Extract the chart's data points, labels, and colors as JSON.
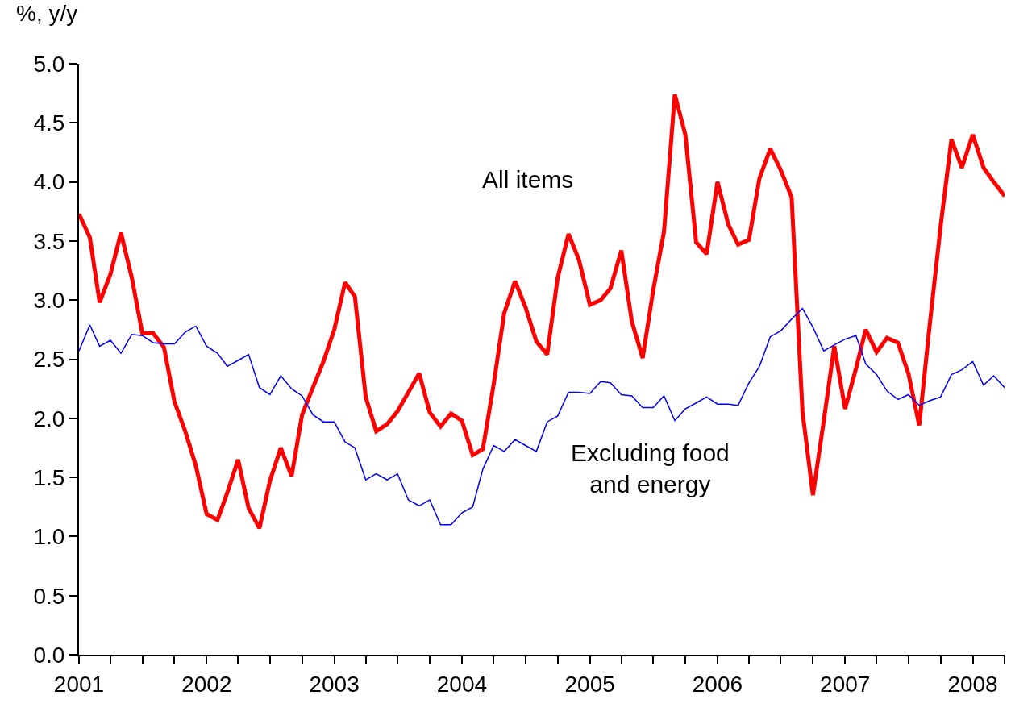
{
  "chart_data": {
    "type": "line",
    "ylabel": "%, y/y",
    "x": [
      "2001-01",
      "2001-02",
      "2001-03",
      "2001-04",
      "2001-05",
      "2001-06",
      "2001-07",
      "2001-08",
      "2001-09",
      "2001-10",
      "2001-11",
      "2001-12",
      "2002-01",
      "2002-02",
      "2002-03",
      "2002-04",
      "2002-05",
      "2002-06",
      "2002-07",
      "2002-08",
      "2002-09",
      "2002-10",
      "2002-11",
      "2002-12",
      "2003-01",
      "2003-02",
      "2003-03",
      "2003-04",
      "2003-05",
      "2003-06",
      "2003-07",
      "2003-08",
      "2003-09",
      "2003-10",
      "2003-11",
      "2003-12",
      "2004-01",
      "2004-02",
      "2004-03",
      "2004-04",
      "2004-05",
      "2004-06",
      "2004-07",
      "2004-08",
      "2004-09",
      "2004-10",
      "2004-11",
      "2004-12",
      "2005-01",
      "2005-02",
      "2005-03",
      "2005-04",
      "2005-05",
      "2005-06",
      "2005-07",
      "2005-08",
      "2005-09",
      "2005-10",
      "2005-11",
      "2005-12",
      "2006-01",
      "2006-02",
      "2006-03",
      "2006-04",
      "2006-05",
      "2006-06",
      "2006-07",
      "2006-08",
      "2006-09",
      "2006-10",
      "2006-11",
      "2006-12",
      "2007-01",
      "2007-02",
      "2007-03",
      "2007-04",
      "2007-05",
      "2007-06",
      "2007-07",
      "2007-08",
      "2007-09",
      "2007-10",
      "2007-11",
      "2007-12",
      "2008-01",
      "2008-02",
      "2008-03",
      "2008-04"
    ],
    "series": [
      {
        "name": "All items",
        "color": "#ff0000",
        "values": [
          3.73,
          3.53,
          2.98,
          3.22,
          3.57,
          3.19,
          2.72,
          2.72,
          2.6,
          2.14,
          1.89,
          1.6,
          1.19,
          1.14,
          1.37,
          1.65,
          1.24,
          1.07,
          1.47,
          1.75,
          1.51,
          2.03,
          2.26,
          2.48,
          2.75,
          3.15,
          3.03,
          2.18,
          1.89,
          1.95,
          2.06,
          2.22,
          2.38,
          2.05,
          1.93,
          2.04,
          1.98,
          1.69,
          1.74,
          2.29,
          2.89,
          3.16,
          2.94,
          2.65,
          2.54,
          3.19,
          3.56,
          3.34,
          2.96,
          3.0,
          3.1,
          3.42,
          2.82,
          2.51,
          3.08,
          3.58,
          4.74,
          4.4,
          3.49,
          3.39,
          4.0,
          3.64,
          3.47,
          3.51,
          4.03,
          4.28,
          4.1,
          3.87,
          2.06,
          1.35,
          1.98,
          2.61,
          2.08,
          2.42,
          2.75,
          2.56,
          2.68,
          2.64,
          2.38,
          1.94,
          2.82,
          3.62,
          4.36,
          4.12,
          4.4,
          4.12,
          4.0,
          3.88
        ]
      },
      {
        "name": "Excluding food\nand energy",
        "color": "#0000ff",
        "values": [
          2.57,
          2.79,
          2.61,
          2.66,
          2.55,
          2.71,
          2.7,
          2.64,
          2.63,
          2.63,
          2.73,
          2.78,
          2.61,
          2.55,
          2.44,
          2.49,
          2.54,
          2.26,
          2.2,
          2.36,
          2.25,
          2.19,
          2.03,
          1.97,
          1.97,
          1.8,
          1.75,
          1.48,
          1.53,
          1.48,
          1.53,
          1.31,
          1.26,
          1.31,
          1.1,
          1.1,
          1.2,
          1.25,
          1.57,
          1.77,
          1.72,
          1.82,
          1.77,
          1.72,
          1.97,
          2.02,
          2.22,
          2.22,
          2.21,
          2.31,
          2.3,
          2.2,
          2.19,
          2.09,
          2.09,
          2.19,
          1.98,
          2.08,
          2.13,
          2.18,
          2.12,
          2.12,
          2.11,
          2.3,
          2.44,
          2.69,
          2.74,
          2.84,
          2.93,
          2.77,
          2.57,
          2.62,
          2.67,
          2.7,
          2.46,
          2.37,
          2.23,
          2.16,
          2.2,
          2.11,
          2.15,
          2.18,
          2.37,
          2.41,
          2.48,
          2.28,
          2.36,
          2.26
        ]
      }
    ],
    "ylim": [
      0,
      5
    ],
    "yticks": [
      {
        "value": 0,
        "label": "0.0"
      },
      {
        "value": 0.5,
        "label": "0.5"
      },
      {
        "value": 1,
        "label": "1.0"
      },
      {
        "value": 1.5,
        "label": "1.5"
      },
      {
        "value": 2,
        "label": "2.0"
      },
      {
        "value": 2.5,
        "label": "2.5"
      },
      {
        "value": 3,
        "label": "3.0"
      },
      {
        "value": 3.5,
        "label": "3.5"
      },
      {
        "value": 4,
        "label": "4.0"
      },
      {
        "value": 4.5,
        "label": "4.5"
      },
      {
        "value": 5,
        "label": "5.0"
      }
    ],
    "xlim": [
      "2001-01",
      "2008-04"
    ],
    "xticks": [
      {
        "value": "2001-01",
        "label": "2001"
      },
      {
        "value": "2001-04",
        "label": null
      },
      {
        "value": "2001-07",
        "label": null
      },
      {
        "value": "2001-10",
        "label": null
      },
      {
        "value": "2002-01",
        "label": "2002"
      },
      {
        "value": "2002-04",
        "label": null
      },
      {
        "value": "2002-07",
        "label": null
      },
      {
        "value": "2002-10",
        "label": null
      },
      {
        "value": "2003-01",
        "label": "2003"
      },
      {
        "value": "2003-04",
        "label": null
      },
      {
        "value": "2003-07",
        "label": null
      },
      {
        "value": "2003-10",
        "label": null
      },
      {
        "value": "2004-01",
        "label": "2004"
      },
      {
        "value": "2004-04",
        "label": null
      },
      {
        "value": "2004-07",
        "label": null
      },
      {
        "value": "2004-10",
        "label": null
      },
      {
        "value": "2005-01",
        "label": "2005"
      },
      {
        "value": "2005-04",
        "label": null
      },
      {
        "value": "2005-07",
        "label": null
      },
      {
        "value": "2005-10",
        "label": null
      },
      {
        "value": "2006-01",
        "label": "2006"
      },
      {
        "value": "2006-04",
        "label": null
      },
      {
        "value": "2006-07",
        "label": null
      },
      {
        "value": "2006-10",
        "label": null
      },
      {
        "value": "2007-01",
        "label": "2007"
      },
      {
        "value": "2007-04",
        "label": null
      },
      {
        "value": "2007-07",
        "label": null
      },
      {
        "value": "2007-10",
        "label": null
      },
      {
        "value": "2008-01",
        "label": "2008"
      },
      {
        "value": "2008-04",
        "label": null
      }
    ],
    "legend": false,
    "marker": "none",
    "line_style": "solid"
  }
}
